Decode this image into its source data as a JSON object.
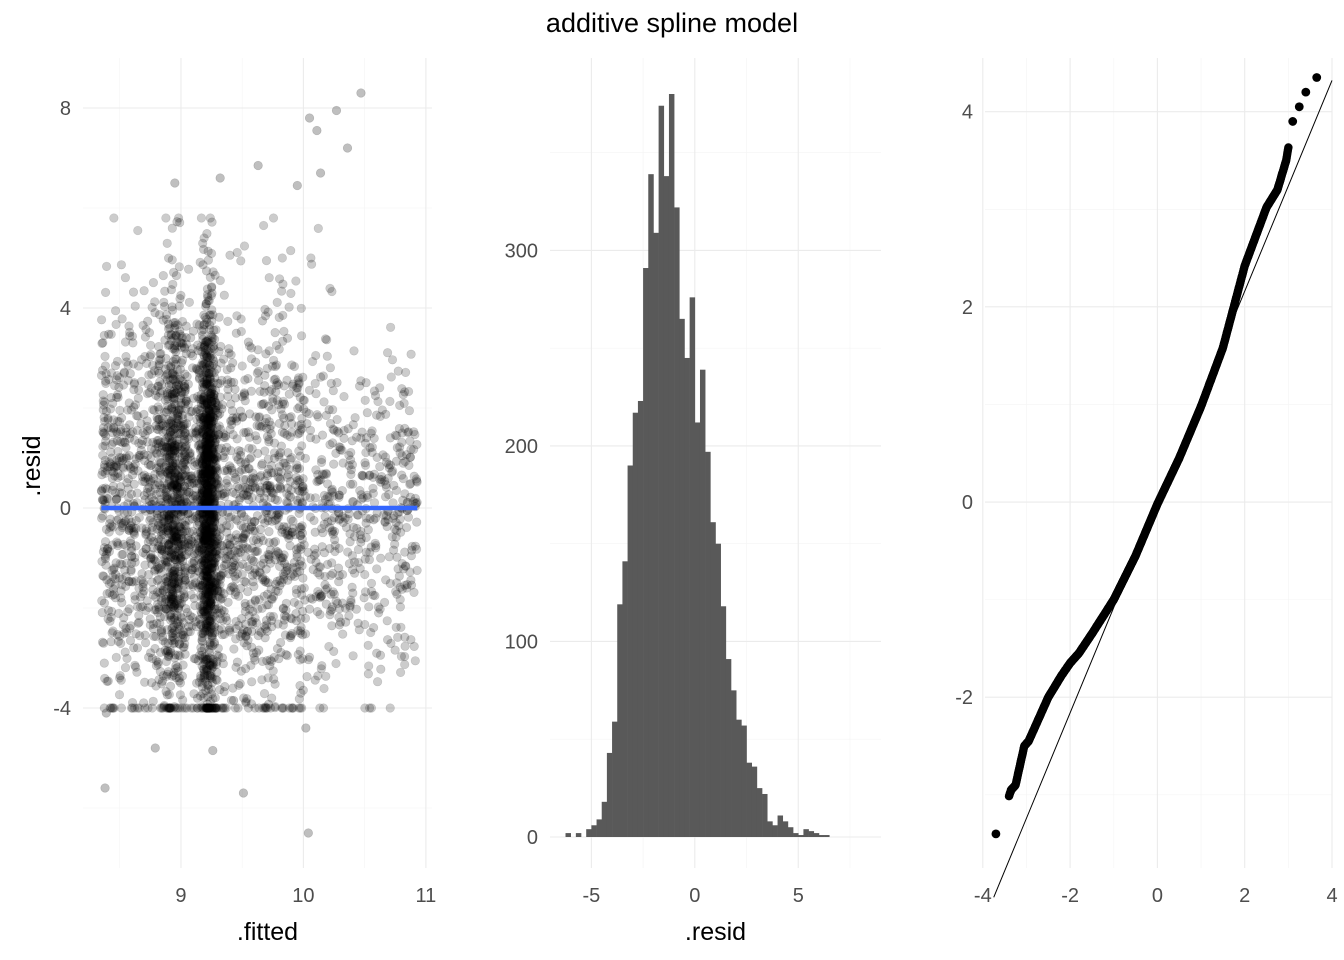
{
  "title": "additive spline model",
  "colors": {
    "points": "#000000",
    "smooth_line": "#3366ff",
    "bars": "#595959",
    "qq_line": "#000000"
  },
  "chart_data": [
    {
      "type": "scatter",
      "name": "residuals-vs-fitted",
      "xlabel": ".fitted",
      "ylabel": ".resid",
      "xlim": [
        8.2,
        11.05
      ],
      "ylim": [
        -7.2,
        9.0
      ],
      "x_ticks": [
        9,
        10,
        11
      ],
      "y_ticks": [
        -4,
        0,
        4,
        8
      ],
      "point_alpha": 0.2,
      "smooth_line": {
        "x": [
          8.35,
          10.93
        ],
        "y": [
          0,
          0
        ]
      },
      "n_points": 4000,
      "outliers": [
        {
          "x": 10.47,
          "y": 8.3
        },
        {
          "x": 10.27,
          "y": 7.95
        },
        {
          "x": 10.05,
          "y": 7.8
        },
        {
          "x": 10.11,
          "y": 7.55
        },
        {
          "x": 10.36,
          "y": 7.2
        },
        {
          "x": 9.63,
          "y": 6.85
        },
        {
          "x": 10.14,
          "y": 6.7
        },
        {
          "x": 9.95,
          "y": 6.45
        },
        {
          "x": 8.95,
          "y": 6.5
        },
        {
          "x": 9.32,
          "y": 6.6
        },
        {
          "x": 8.38,
          "y": -5.6
        },
        {
          "x": 9.51,
          "y": -5.7
        },
        {
          "x": 10.04,
          "y": -6.5
        },
        {
          "x": 9.26,
          "y": -4.85
        },
        {
          "x": 8.79,
          "y": -4.8
        },
        {
          "x": 10.02,
          "y": -4.4
        },
        {
          "x": 8.39,
          "y": -4.1
        },
        {
          "x": 9.43,
          "y": -3.85
        }
      ]
    },
    {
      "type": "bar",
      "name": "residual-histogram",
      "xlabel": ".resid",
      "ylabel": "",
      "xlim": [
        -7.0,
        9.0
      ],
      "ylim": [
        0,
        380
      ],
      "x_ticks": [
        -5,
        0,
        5
      ],
      "y_ticks": [
        0,
        100,
        200,
        300
      ],
      "bin_width": 0.25,
      "bin_start": -6.25,
      "values": [
        2,
        0,
        2,
        0,
        4,
        6,
        9,
        18,
        43,
        59,
        119,
        141,
        190,
        217,
        223,
        291,
        339,
        309,
        374,
        338,
        380,
        322,
        265,
        245,
        276,
        212,
        239,
        197,
        161,
        150,
        118,
        91,
        75,
        60,
        57,
        38,
        36,
        25,
        22,
        8,
        6,
        11,
        8,
        5,
        2,
        1,
        4,
        3,
        2,
        1,
        1
      ]
    },
    {
      "type": "scatter",
      "name": "normal-qq",
      "xlabel": "",
      "ylabel": "",
      "xlim": [
        -3.95,
        4.0
      ],
      "ylim": [
        -3.75,
        4.55
      ],
      "x_ticks": [
        -4,
        -2,
        0,
        2,
        4
      ],
      "y_ticks": [
        -2,
        0,
        2,
        4
      ],
      "reference_line": {
        "intercept": 0.0,
        "slope": 1.08
      },
      "sample_points": [
        {
          "x": -3.7,
          "y": -3.4
        },
        {
          "x": -3.35,
          "y": -2.95
        },
        {
          "x": -3.25,
          "y": -2.9
        },
        {
          "x": -3.05,
          "y": -2.5
        },
        {
          "x": -2.95,
          "y": -2.45
        },
        {
          "x": -2.75,
          "y": -2.25
        },
        {
          "x": -2.5,
          "y": -2.0
        },
        {
          "x": -2.2,
          "y": -1.78
        },
        {
          "x": -2.0,
          "y": -1.65
        },
        {
          "x": -1.8,
          "y": -1.55
        },
        {
          "x": -1.5,
          "y": -1.35
        },
        {
          "x": -1.0,
          "y": -1.0
        },
        {
          "x": -0.5,
          "y": -0.55
        },
        {
          "x": 0.0,
          "y": -0.02
        },
        {
          "x": 0.5,
          "y": 0.45
        },
        {
          "x": 1.0,
          "y": 0.98
        },
        {
          "x": 1.5,
          "y": 1.58
        },
        {
          "x": 2.0,
          "y": 2.42
        },
        {
          "x": 2.5,
          "y": 3.02
        },
        {
          "x": 2.75,
          "y": 3.2
        },
        {
          "x": 2.85,
          "y": 3.35
        },
        {
          "x": 2.95,
          "y": 3.5
        },
        {
          "x": 3.1,
          "y": 3.9
        },
        {
          "x": 3.25,
          "y": 4.05
        },
        {
          "x": 3.4,
          "y": 4.2
        },
        {
          "x": 3.65,
          "y": 4.35
        }
      ]
    }
  ]
}
